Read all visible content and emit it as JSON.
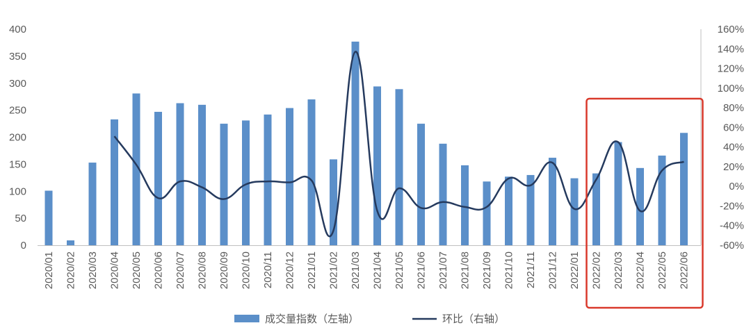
{
  "chart_data": {
    "type": "bar",
    "categories": [
      "2020/01",
      "2020/02",
      "2020/03",
      "2020/04",
      "2020/05",
      "2020/06",
      "2020/07",
      "2020/08",
      "2020/09",
      "2020/10",
      "2020/11",
      "2020/12",
      "2021/01",
      "2021/02",
      "2021/03",
      "2021/04",
      "2021/05",
      "2021/06",
      "2021/07",
      "2021/08",
      "2021/09",
      "2021/10",
      "2021/11",
      "2021/12",
      "2022/01",
      "2022/02",
      "2022/03",
      "2022/04",
      "2022/05",
      "2022/06"
    ],
    "series": [
      {
        "name": "成交量指数（左轴）",
        "type": "bar",
        "axis": "left",
        "color": "#5b8fc9",
        "values": [
          101,
          9,
          153,
          233,
          281,
          247,
          263,
          260,
          225,
          231,
          242,
          254,
          270,
          159,
          377,
          294,
          289,
          225,
          188,
          148,
          118,
          127,
          130,
          162,
          124,
          133,
          191,
          143,
          166,
          208
        ]
      },
      {
        "name": "环比（右轴）",
        "type": "line",
        "axis": "right",
        "color": "#253a5e",
        "values": [
          null,
          null,
          null,
          51,
          22,
          -12,
          5,
          -1,
          -13,
          2,
          5,
          4,
          6,
          -45,
          137,
          -25,
          -2,
          -22,
          -16,
          -21,
          -21,
          8,
          1,
          24,
          -23,
          7,
          45,
          -25,
          16,
          25
        ]
      }
    ],
    "y_left": {
      "min": 0,
      "max": 400,
      "ticks": [
        "0",
        "50",
        "100",
        "150",
        "200",
        "250",
        "300",
        "350",
        "400"
      ]
    },
    "y_right": {
      "min": -60,
      "max": 160,
      "ticks": [
        "-60%",
        "-40%",
        "-20%",
        "0%",
        "20%",
        "40%",
        "60%",
        "80%",
        "100%",
        "120%",
        "140%",
        "160%"
      ]
    },
    "grid": false,
    "legend_position": "bottom",
    "highlight": {
      "from": "2022/02",
      "to": "2022/06",
      "color": "#d9392b"
    }
  }
}
